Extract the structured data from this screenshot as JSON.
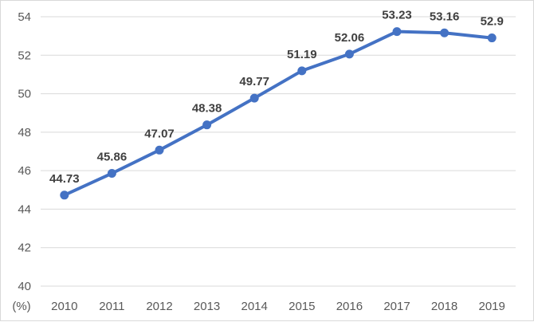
{
  "chart_data": {
    "type": "line",
    "title": "",
    "xlabel": "",
    "ylabel": "(%)",
    "x": [
      "2010",
      "2011",
      "2012",
      "2013",
      "2014",
      "2015",
      "2016",
      "2017",
      "2018",
      "2019"
    ],
    "series": [
      {
        "values": [
          44.73,
          45.86,
          47.07,
          48.38,
          49.77,
          51.19,
          52.06,
          53.23,
          53.16,
          52.9
        ],
        "labels": [
          "44.73",
          "45.86",
          "47.07",
          "48.38",
          "49.77",
          "51.19",
          "52.06",
          "53.23",
          "53.16",
          "52.9"
        ],
        "color": "#4472c4"
      }
    ],
    "ylim": [
      40,
      54
    ],
    "yticks": [
      "40",
      "42",
      "44",
      "46",
      "48",
      "50",
      "52",
      "54"
    ],
    "grid": true,
    "legend": "none",
    "gridline_color": "#d9d9d9"
  }
}
